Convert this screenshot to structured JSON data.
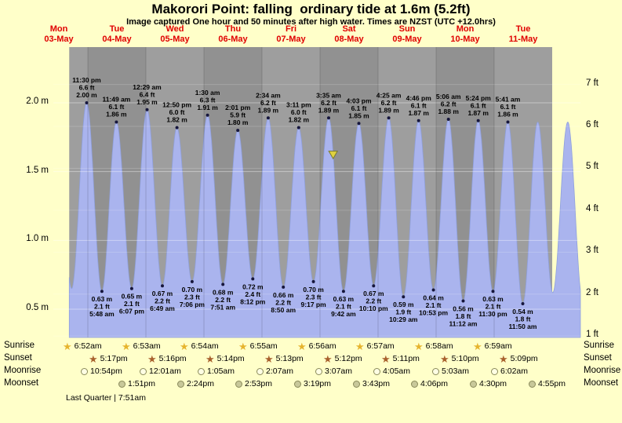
{
  "header": {
    "title": "Makorori Point: falling  ordinary tide at 1.6m (5.2ft)",
    "subtitle": "Image captured One hour and 50 minutes after high water. Times are NZST (UTC +12.0hrs)"
  },
  "colors": {
    "background": "#ffffc9",
    "plot_gray": "#999999",
    "tide_fill": "#aab4ee",
    "tide_stroke": "#8fa0dd",
    "dot": "#16163c",
    "day_label_red": "#e00000",
    "marker_yellow": "#e0d23f",
    "marker_outline": "#7a7a30"
  },
  "chart_data": {
    "type": "area",
    "title": "Makorori Point: falling  ordinary tide at 1.6m (5.2ft)",
    "subtitle": "Image captured One hour and 50 minutes after high water. Times are NZST (UTC +12.0hrs)",
    "y_axis_left": {
      "unit": "m",
      "ticks": [
        {
          "label": "2.0 m",
          "value": 2.0
        },
        {
          "label": "1.5 m",
          "value": 1.5
        },
        {
          "label": "1.0 m",
          "value": 1.0
        },
        {
          "label": "0.5 m",
          "value": 0.5
        }
      ]
    },
    "y_axis_right": {
      "unit": "ft",
      "ticks": [
        {
          "label": "7 ft",
          "value": 7
        },
        {
          "label": "6 ft",
          "value": 6
        },
        {
          "label": "5 ft",
          "value": 5
        },
        {
          "label": "4 ft",
          "value": 4
        },
        {
          "label": "3 ft",
          "value": 3
        },
        {
          "label": "2 ft",
          "value": 2
        },
        {
          "label": "1 ft",
          "value": 1
        }
      ]
    },
    "days": [
      {
        "name": "Mon",
        "date": "03-May"
      },
      {
        "name": "Tue",
        "date": "04-May"
      },
      {
        "name": "Wed",
        "date": "05-May"
      },
      {
        "name": "Thu",
        "date": "06-May"
      },
      {
        "name": "Fri",
        "date": "07-May"
      },
      {
        "name": "Sat",
        "date": "08-May"
      },
      {
        "name": "Sun",
        "date": "09-May"
      },
      {
        "name": "Mon",
        "date": "10-May"
      },
      {
        "name": "Tue",
        "date": "11-May"
      }
    ],
    "tide_events": [
      {
        "day": 0,
        "type": "high",
        "time": "11:30 pm",
        "height_m": "2.00",
        "height_ft": "6.6"
      },
      {
        "day": 1,
        "type": "low",
        "time": "5:48 am",
        "height_m": "0.63",
        "height_ft": "2.1"
      },
      {
        "day": 1,
        "type": "high",
        "time": "11:49 am",
        "height_m": "1.86",
        "height_ft": "6.1"
      },
      {
        "day": 1,
        "type": "low",
        "time": "6:07 pm",
        "height_m": "0.65",
        "height_ft": "2.1"
      },
      {
        "day": 2,
        "type": "high",
        "time": "12:29 am",
        "height_m": "1.95",
        "height_ft": "6.4"
      },
      {
        "day": 2,
        "type": "low",
        "time": "6:49 am",
        "height_m": "0.67",
        "height_ft": "2.2"
      },
      {
        "day": 2,
        "type": "high",
        "time": "12:50 pm",
        "height_m": "1.82",
        "height_ft": "6.0"
      },
      {
        "day": 2,
        "type": "low",
        "time": "7:06 pm",
        "height_m": "0.70",
        "height_ft": "2.3"
      },
      {
        "day": 3,
        "type": "high",
        "time": "1:30 am",
        "height_m": "1.91",
        "height_ft": "6.3"
      },
      {
        "day": 3,
        "type": "low",
        "time": "7:51 am",
        "height_m": "0.68",
        "height_ft": "2.2"
      },
      {
        "day": 3,
        "type": "high",
        "time": "2:01 pm",
        "height_m": "1.80",
        "height_ft": "5.9"
      },
      {
        "day": 3,
        "type": "low",
        "time": "8:12 pm",
        "height_m": "0.72",
        "height_ft": "2.4"
      },
      {
        "day": 4,
        "type": "high",
        "time": "2:34 am",
        "height_m": "1.89",
        "height_ft": "6.2"
      },
      {
        "day": 4,
        "type": "low",
        "time": "8:50 am",
        "height_m": "0.66",
        "height_ft": "2.2"
      },
      {
        "day": 4,
        "type": "high",
        "time": "3:11 pm",
        "height_m": "1.82",
        "height_ft": "6.0"
      },
      {
        "day": 4,
        "type": "low",
        "time": "9:17 pm",
        "height_m": "0.70",
        "height_ft": "2.3"
      },
      {
        "day": 5,
        "type": "high",
        "time": "3:35 am",
        "height_m": "1.89",
        "height_ft": "6.2"
      },
      {
        "day": 5,
        "type": "low",
        "time": "9:42 am",
        "height_m": "0.63",
        "height_ft": "2.1"
      },
      {
        "day": 5,
        "type": "high",
        "time": "4:03 pm",
        "height_m": "1.85",
        "height_ft": "6.1"
      },
      {
        "day": 5,
        "type": "low",
        "time": "10:10 pm",
        "height_m": "0.67",
        "height_ft": "2.2"
      },
      {
        "day": 6,
        "type": "high",
        "time": "4:25 am",
        "height_m": "1.89",
        "height_ft": "6.2"
      },
      {
        "day": 6,
        "type": "low",
        "time": "10:29 am",
        "height_m": "0.59",
        "height_ft": "1.9"
      },
      {
        "day": 6,
        "type": "high",
        "time": "4:46 pm",
        "height_m": "1.87",
        "height_ft": "6.1"
      },
      {
        "day": 6,
        "type": "low",
        "time": "10:53 pm",
        "height_m": "0.64",
        "height_ft": "2.1"
      },
      {
        "day": 7,
        "type": "high",
        "time": "5:06 am",
        "height_m": "1.88",
        "height_ft": "6.2"
      },
      {
        "day": 7,
        "type": "low",
        "time": "11:12 am",
        "height_m": "0.56",
        "height_ft": "1.8"
      },
      {
        "day": 7,
        "type": "high",
        "time": "5:24 pm",
        "height_m": "1.87",
        "height_ft": "6.1"
      },
      {
        "day": 7,
        "type": "low",
        "time": "11:30 pm",
        "height_m": "0.63",
        "height_ft": "2.1"
      },
      {
        "day": 8,
        "type": "high",
        "time": "5:41 am",
        "height_m": "1.86",
        "height_ft": "6.1"
      },
      {
        "day": 8,
        "type": "low",
        "time": "11:50 am",
        "height_m": "0.54",
        "height_ft": "1.8"
      }
    ],
    "current_marker": {
      "shape": "triangle-down",
      "height_m": 1.6,
      "day": 5,
      "time": "5:25 am"
    }
  },
  "astro": {
    "rows": [
      {
        "label": "Sunrise",
        "icon": "sunrise-star-icon",
        "times": [
          "6:52am",
          "6:53am",
          "6:54am",
          "6:55am",
          "6:56am",
          "6:57am",
          "6:58am",
          "6:59am"
        ]
      },
      {
        "label": "Sunset",
        "icon": "sunset-star-icon",
        "times": [
          "5:17pm",
          "5:16pm",
          "5:14pm",
          "5:13pm",
          "5:12pm",
          "5:11pm",
          "5:10pm",
          "5:09pm"
        ]
      },
      {
        "label": "Moonrise",
        "icon": "moonrise-circle-icon",
        "times": [
          "10:54pm",
          "12:01am",
          "1:05am",
          "2:07am",
          "3:07am",
          "4:05am",
          "5:03am",
          "6:02am"
        ]
      },
      {
        "label": "Moonset",
        "icon": "moonset-circle-icon",
        "times": [
          "1:51pm",
          "2:24pm",
          "2:53pm",
          "3:19pm",
          "3:43pm",
          "4:06pm",
          "4:30pm",
          "4:55pm"
        ]
      }
    ],
    "moon_phase": "Last Quarter | 7:51am"
  }
}
